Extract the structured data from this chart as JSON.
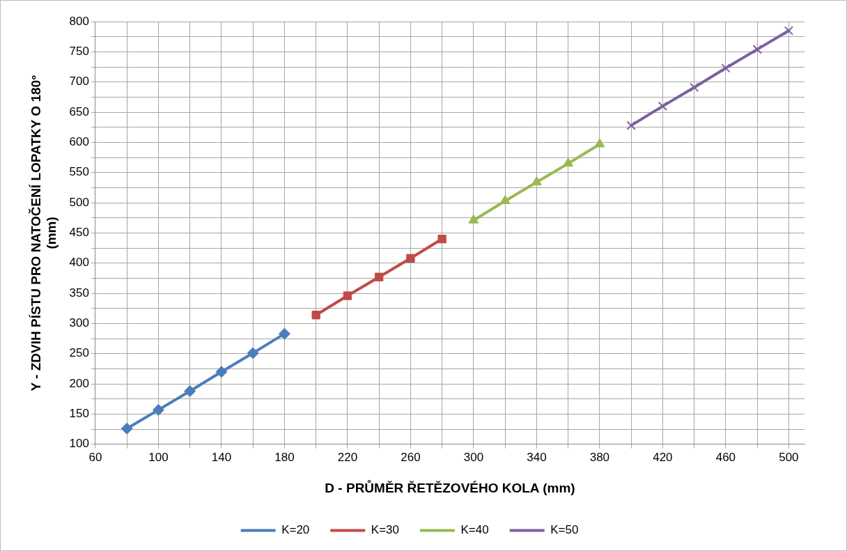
{
  "chart_data": {
    "type": "line",
    "xlabel": "D - PRŮMĚR ŘETĚZOVÉHO KOLA (mm)",
    "ylabel": "Y - ZDVIH PÍSTU PRO NATOČENÍ LOPATKY O 180°\n(mm)",
    "series": [
      {
        "name": "K=20",
        "color": "#4a7ebb",
        "marker": "diamond",
        "x": [
          80,
          100,
          120,
          140,
          160,
          180
        ],
        "values": [
          126,
          157,
          188,
          220,
          251,
          283
        ]
      },
      {
        "name": "K=30",
        "color": "#be4b48",
        "marker": "square",
        "x": [
          200,
          220,
          240,
          260,
          280
        ],
        "values": [
          314,
          346,
          377,
          408,
          440
        ]
      },
      {
        "name": "K=40",
        "color": "#98b954",
        "marker": "triangle",
        "x": [
          300,
          320,
          340,
          360,
          380
        ],
        "values": [
          471,
          503,
          534,
          565,
          597
        ]
      },
      {
        "name": "K=50",
        "color": "#7d60a0",
        "marker": "cross",
        "x": [
          400,
          420,
          440,
          460,
          480,
          500
        ],
        "values": [
          628,
          660,
          691,
          723,
          754,
          785
        ]
      }
    ],
    "xlim": [
      60,
      510
    ],
    "xticks": [
      60,
      {
        "value": 80,
        "label": null
      },
      100,
      {
        "value": 120,
        "label": null
      },
      140,
      {
        "value": 160,
        "label": null
      },
      180,
      {
        "value": 200,
        "label": null
      },
      220,
      {
        "value": 240,
        "label": null
      },
      260,
      {
        "value": 280,
        "label": null
      },
      300,
      {
        "value": 320,
        "label": null
      },
      340,
      {
        "value": 360,
        "label": null
      },
      380,
      {
        "value": 400,
        "label": null
      },
      420,
      {
        "value": 440,
        "label": null
      },
      460,
      {
        "value": 480,
        "label": null
      },
      500
    ],
    "ylim": [
      100,
      800
    ],
    "yticks": [
      100,
      {
        "value": 125,
        "label": null
      },
      150,
      {
        "value": 175,
        "label": null
      },
      200,
      {
        "value": 225,
        "label": null
      },
      250,
      {
        "value": 275,
        "label": null
      },
      300,
      {
        "value": 325,
        "label": null
      },
      350,
      {
        "value": 375,
        "label": null
      },
      400,
      {
        "value": 425,
        "label": null
      },
      450,
      {
        "value": 475,
        "label": null
      },
      500,
      {
        "value": 525,
        "label": null
      },
      550,
      {
        "value": 575,
        "label": null
      },
      600,
      {
        "value": 625,
        "label": null
      },
      650,
      {
        "value": 675,
        "label": null
      },
      700,
      {
        "value": 725,
        "label": null
      },
      750,
      {
        "value": 775,
        "label": null
      },
      800
    ],
    "grid": true,
    "legend": "bottom",
    "line_style": "solid"
  }
}
